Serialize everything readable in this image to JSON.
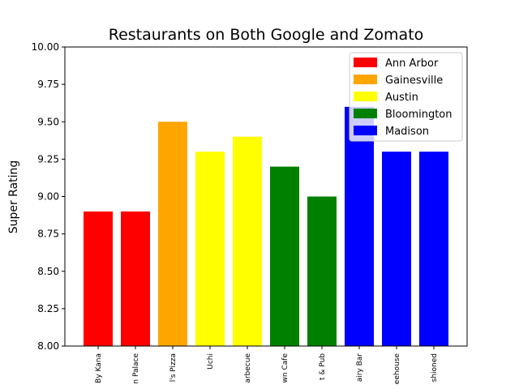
{
  "chart_data": {
    "type": "bar",
    "title": "Restaurants on Both Google and Zomato",
    "xlabel": "",
    "ylabel": "Super Rating",
    "ylim": [
      8.0,
      10.0
    ],
    "yticks": [
      "8.00",
      "8.25",
      "8.50",
      "8.75",
      "9.00",
      "9.25",
      "9.50",
      "9.75",
      "10.00"
    ],
    "categories": [
      "By Kana",
      "n Palace",
      "l's Pizza",
      "Uchi",
      "arbecue",
      "wn Cafe",
      "t & Pub",
      "airy Bar",
      "eehouse",
      "shioned"
    ],
    "values": [
      8.9,
      8.9,
      9.5,
      9.3,
      9.4,
      9.2,
      9.0,
      9.6,
      9.3,
      9.3
    ],
    "bar_colors": [
      "#ff0000",
      "#ff0000",
      "#ffa500",
      "#ffff00",
      "#ffff00",
      "#008000",
      "#008000",
      "#0000ff",
      "#0000ff",
      "#0000ff"
    ],
    "legend": {
      "placement": "top-right",
      "entries": [
        {
          "label": "Ann Arbor",
          "color": "#ff0000"
        },
        {
          "label": "Gainesville",
          "color": "#ffa500"
        },
        {
          "label": "Austin",
          "color": "#ffff00"
        },
        {
          "label": "Bloomington",
          "color": "#008000"
        },
        {
          "label": "Madison",
          "color": "#0000ff"
        }
      ]
    },
    "grid": false
  }
}
